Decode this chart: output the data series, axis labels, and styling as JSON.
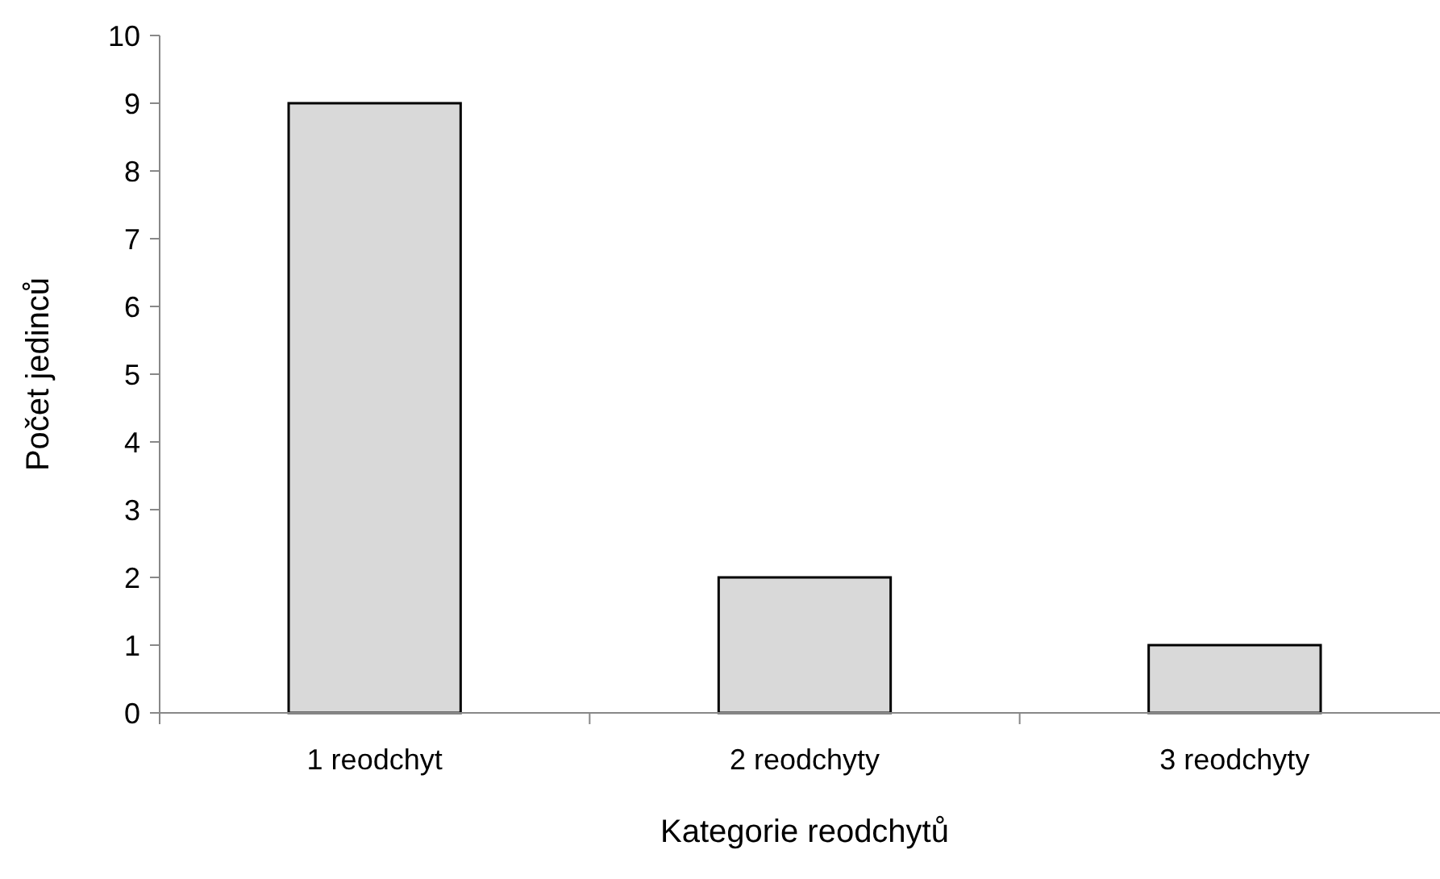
{
  "chart_data": {
    "type": "bar",
    "xlabel": "Kategorie reodchytů",
    "ylabel": "Počet jedinců",
    "categories": [
      "1 reodchyt",
      "2 reodchyty",
      "3 reodchyty"
    ],
    "values": [
      9,
      2,
      1
    ],
    "color": "#d9d9d9",
    "ylim": [
      0,
      10
    ],
    "yticks": [
      0,
      1,
      2,
      3,
      4,
      5,
      6,
      7,
      8,
      9,
      10
    ],
    "grid": false
  }
}
